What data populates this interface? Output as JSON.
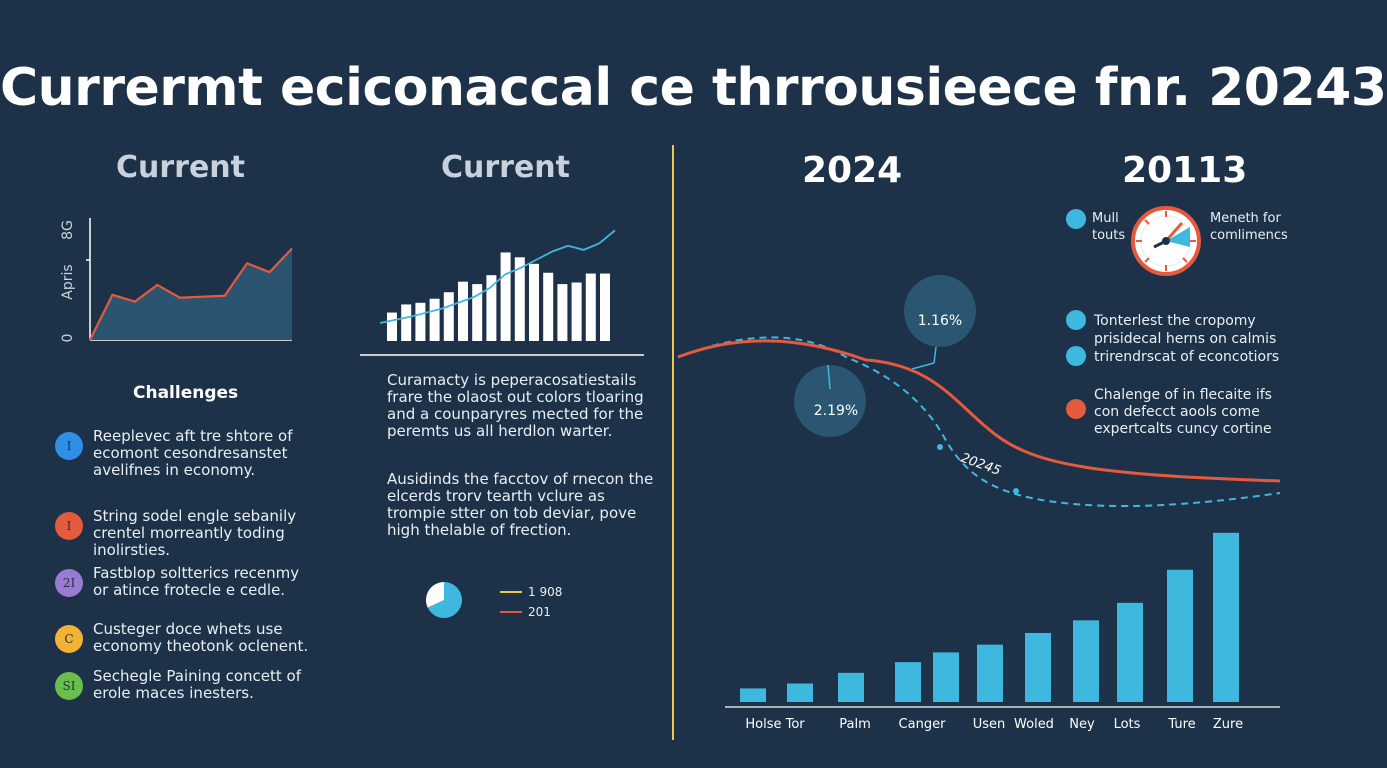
{
  "title": "Currermt eciconaccal ce thrrousieece fnr. 20243",
  "colors": {
    "background": "#1d3249",
    "accent_blue": "#3fb8df",
    "accent_orange": "#e35a3d",
    "area_fill": "#2a5470",
    "divider": "#e8c94a"
  },
  "left_panel": {
    "heading": "Current",
    "chart_ylabel_top": "8G",
    "chart_ylabel_mid": "Apris",
    "chart_ylabel_zero": "0",
    "challenges_heading": "Challenges",
    "items": [
      {
        "icon": "I",
        "color": "#2f8ee6",
        "text": "Reeplevec aft tre shtore of\necomont cesondresanstet\navelifnes in economy."
      },
      {
        "icon": "I",
        "color": "#e35a3d",
        "text": "String sodel engle sebanily\ncrentel morreantly toding\ninolirsties."
      },
      {
        "icon": "2I",
        "color": "#9b7bd2",
        "text": "Fastblop soltterics recenmy\nor atince frotecle e cedle."
      },
      {
        "icon": "C",
        "color": "#f2b233",
        "text": "Custeger doce whets use\neconomy theotonk oclenent."
      },
      {
        "icon": "SI",
        "color": "#6abf4b",
        "text": "Sechegle Paining concett of\nerole maces inesters."
      }
    ]
  },
  "middle_panel": {
    "heading": "Current",
    "paragraph1": "Curamacty is peperacosatiestails\nfrare the olaost out colors tloaring\nand a counparyres mected for the\nperemts us all herdlon warter.",
    "paragraph2": "Ausidinds the facctov of rnecon the\nelcerds trorv tearth vclure as\ntrompie stter on tob deviar, pove\nhigh thelable of frection.",
    "legend": [
      {
        "label": "1 908",
        "color": "#e8c94a"
      },
      {
        "label": "201",
        "color": "#e35a3d"
      }
    ]
  },
  "right_panel": {
    "heading_left": "2024",
    "heading_right": "20113",
    "gauge_left_label": "Mull\ntouts",
    "gauge_right_label": "Meneth for\ncomlimencs",
    "bubble_top": "1.16%",
    "bubble_left": "2.19%",
    "curve_label": "20245",
    "notes": [
      {
        "color": "#3fb8df",
        "text": "Tonterlest the cropomy"
      },
      {
        "color": "#3fb8df",
        "text": "trirendrscat of econcotiors",
        "pre": "prisidecal herns on calmis"
      },
      {
        "color": "#e35a3d",
        "text": "Chalenge of in flecaite ifs\ncon defecct aools come\nexpertcalts cuncy cortine"
      }
    ]
  },
  "chart_data": [
    {
      "type": "area",
      "title": "Current",
      "x": [
        0,
        1,
        2,
        3,
        4,
        5,
        6,
        7,
        8,
        9
      ],
      "values": [
        0,
        4.6,
        3.9,
        5.6,
        4.3,
        4.4,
        4.5,
        7.8,
        6.9,
        9.3
      ],
      "ylim": [
        0,
        12
      ],
      "ylabel": "Apris"
    },
    {
      "type": "bar",
      "title": "Current",
      "values": [
        3.5,
        4.5,
        4.7,
        5.2,
        6.0,
        7.3,
        7.0,
        8.1,
        10.9,
        10.3,
        9.5,
        8.4,
        7.0,
        7.2,
        8.3,
        8.3
      ],
      "line_values": [
        3.2,
        3.6,
        4.0,
        4.5,
        5.0,
        5.7,
        6.4,
        7.5,
        9.2,
        10.0,
        11.0,
        12.0,
        12.7,
        12.2,
        13.0,
        14.6
      ],
      "ylim": [
        0,
        16
      ]
    },
    {
      "type": "line",
      "series": [
        {
          "name": "",
          "color": "#e35a3d",
          "style": "solid"
        },
        {
          "name": "",
          "color": "#3fb8df",
          "style": "dashed"
        }
      ]
    },
    {
      "type": "bar",
      "categories": [
        "Holse Tor",
        "",
        "Palm",
        "Canger",
        "",
        "Usen",
        "Woled",
        "Ney",
        "Lots",
        "Ture",
        "Zure"
      ],
      "values": [
        1.4,
        1.9,
        3.0,
        4.1,
        5.1,
        5.9,
        7.1,
        8.4,
        10.2,
        13.6,
        17.4
      ],
      "ylim": [
        0,
        18
      ]
    },
    {
      "type": "pie",
      "values": [
        68,
        32
      ]
    }
  ]
}
